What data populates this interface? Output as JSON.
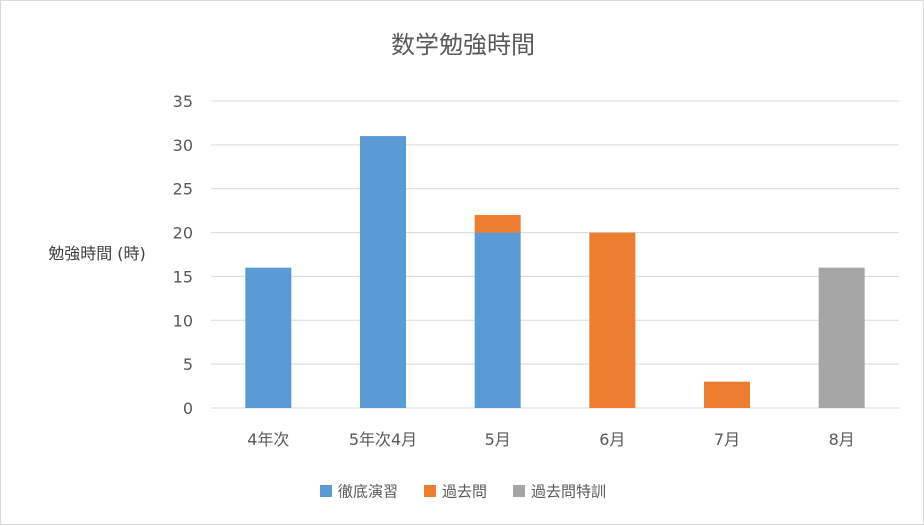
{
  "chart_data": {
    "type": "bar",
    "stacked": true,
    "title": "数学勉強時間",
    "xlabel": "",
    "ylabel": "勉強時間 (時)",
    "categories": [
      "4年次",
      "5年次4月",
      "5月",
      "6月",
      "7月",
      "8月"
    ],
    "series": [
      {
        "name": "徹底演習",
        "color": "#5b9bd5",
        "values": [
          16,
          31,
          20,
          0,
          0,
          0
        ]
      },
      {
        "name": "過去問",
        "color": "#ed7d31",
        "values": [
          0,
          0,
          2,
          20,
          3,
          0
        ]
      },
      {
        "name": "過去問特訓",
        "color": "#a5a5a5",
        "values": [
          0,
          0,
          0,
          0,
          0,
          16
        ]
      }
    ],
    "ylim": [
      0,
      35
    ],
    "yticks": [
      0,
      5,
      10,
      15,
      20,
      25,
      30,
      35
    ],
    "grid": true,
    "legend_position": "bottom"
  }
}
